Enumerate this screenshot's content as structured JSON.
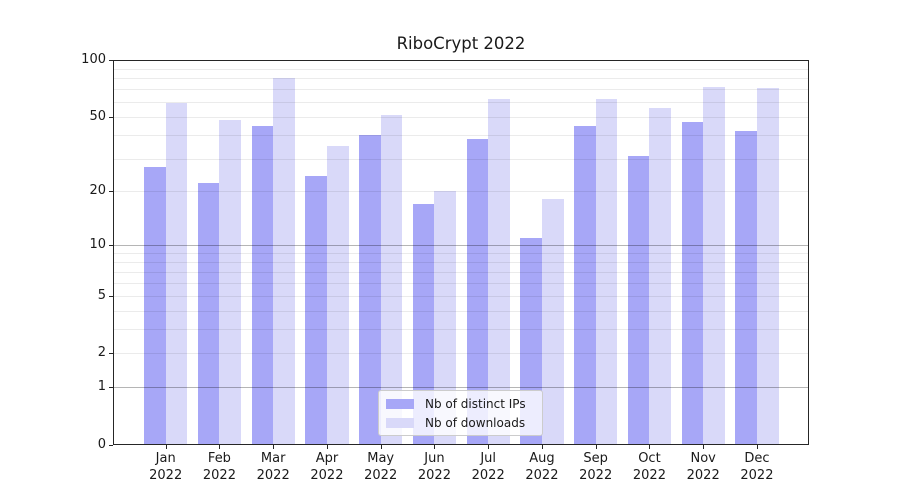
{
  "figure": {
    "background": "#ffffff",
    "text_color": "#1a1a1a",
    "spine_color": "#262626"
  },
  "chart_data": {
    "type": "bar",
    "title": "RiboCrypt 2022",
    "categories": [
      "Jan 2022",
      "Feb 2022",
      "Mar 2022",
      "Apr 2022",
      "May 2022",
      "Jun 2022",
      "Jul 2022",
      "Aug 2022",
      "Sep 2022",
      "Oct 2022",
      "Nov 2022",
      "Dec 2022"
    ],
    "series": [
      {
        "name": "Nb of distinct IPs",
        "color": "#a7a7f7",
        "values": [
          27,
          22,
          45,
          24,
          40,
          17,
          38,
          11,
          45,
          31,
          47,
          42
        ]
      },
      {
        "name": "Nb of downloads",
        "color": "#d9d9f9",
        "values": [
          59,
          48,
          80,
          35,
          51,
          20,
          62,
          18,
          62,
          56,
          72,
          71
        ]
      }
    ],
    "xlabel": "",
    "ylabel": "",
    "yscale": "log1p",
    "ylim": [
      0,
      100
    ],
    "yticks": [
      0,
      1,
      2,
      5,
      10,
      20,
      50,
      100
    ],
    "major_gridlines": [
      1,
      10
    ],
    "minor_gridlines": [
      3,
      4,
      6,
      7,
      8,
      9,
      30,
      40,
      60,
      70,
      80,
      90
    ],
    "grid": true,
    "legend_position": "lower center"
  }
}
